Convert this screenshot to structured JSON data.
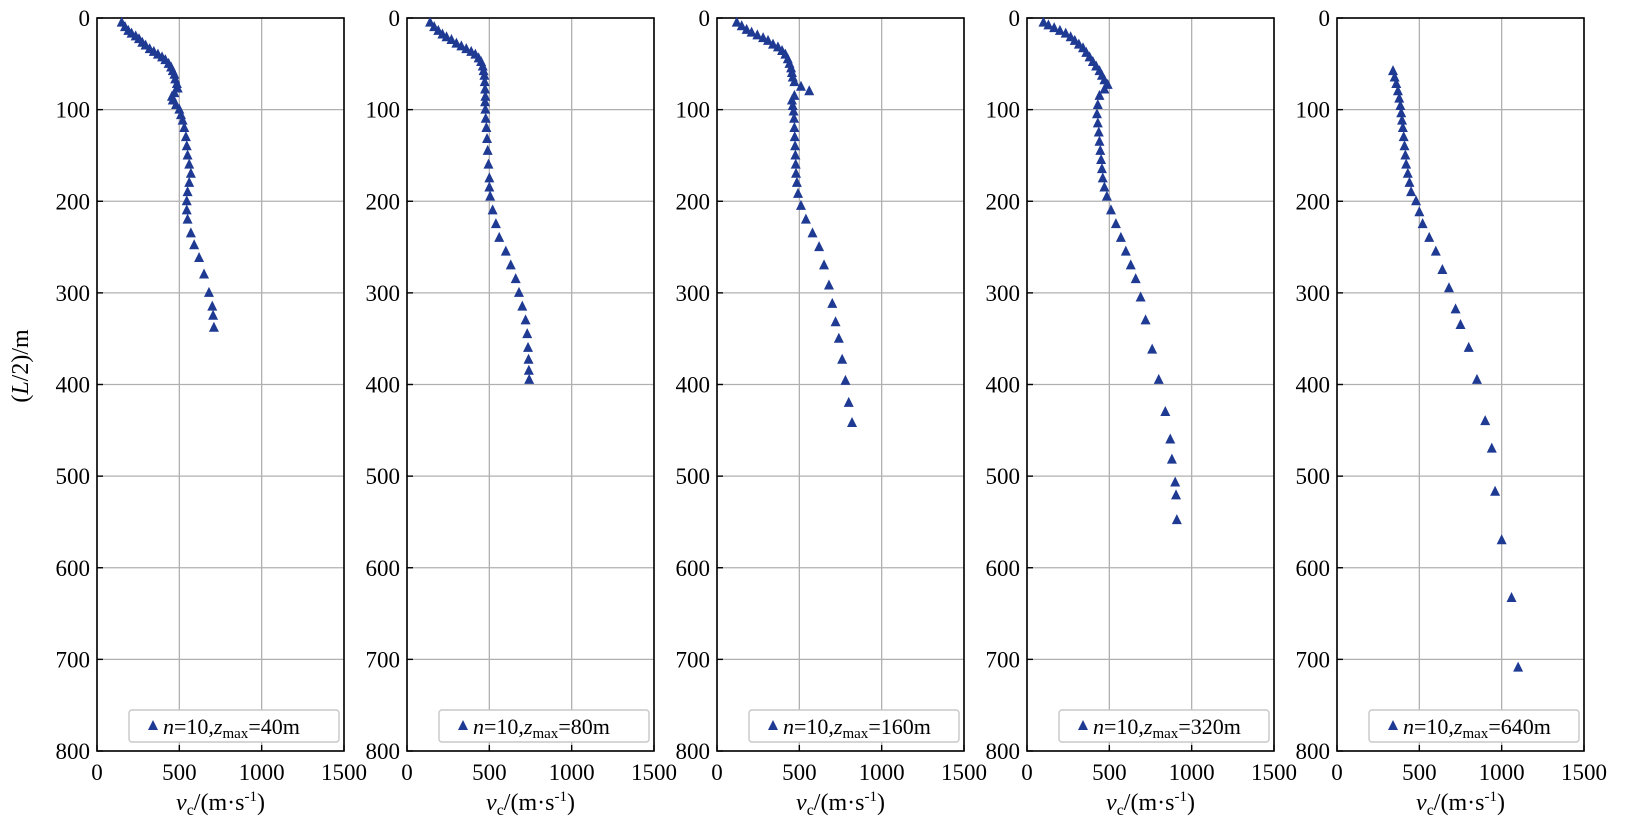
{
  "chart_data": [
    {
      "type": "scatter",
      "ylabel": "(L/2)/m",
      "xlabel": "vc/(m·s-1)",
      "xlim": [
        0,
        1500
      ],
      "ylim": [
        0,
        800
      ],
      "y_inverted": true,
      "grid": true,
      "legend_position": "bottom",
      "marker_color": "#1f3a93",
      "x_ticks": [
        "0",
        "500",
        "1000",
        "1500"
      ],
      "y_ticks": [
        "0",
        "100",
        "200",
        "300",
        "400",
        "500",
        "600",
        "700",
        "800"
      ],
      "series": [
        {
          "name": "n=10,zmax=40m",
          "legend": {
            "n_value": "=10,",
            "z_value": "=40m"
          },
          "points": [
            [
              150,
              5
            ],
            [
              170,
              10
            ],
            [
              190,
              14
            ],
            [
              210,
              17
            ],
            [
              235,
              20
            ],
            [
              255,
              23
            ],
            [
              275,
              27
            ],
            [
              295,
              30
            ],
            [
              320,
              34
            ],
            [
              345,
              37
            ],
            [
              370,
              40
            ],
            [
              395,
              43
            ],
            [
              415,
              46
            ],
            [
              435,
              50
            ],
            [
              450,
              54
            ],
            [
              460,
              58
            ],
            [
              470,
              62
            ],
            [
              475,
              67
            ],
            [
              485,
              72
            ],
            [
              490,
              77
            ],
            [
              470,
              82
            ],
            [
              455,
              86
            ],
            [
              460,
              90
            ],
            [
              480,
              95
            ],
            [
              500,
              100
            ],
            [
              510,
              106
            ],
            [
              520,
              112
            ],
            [
              530,
              120
            ],
            [
              540,
              130
            ],
            [
              545,
              140
            ],
            [
              550,
              150
            ],
            [
              560,
              160
            ],
            [
              570,
              170
            ],
            [
              560,
              180
            ],
            [
              550,
              190
            ],
            [
              545,
              200
            ],
            [
              545,
              210
            ],
            [
              550,
              220
            ],
            [
              570,
              235
            ],
            [
              590,
              248
            ],
            [
              620,
              262
            ],
            [
              650,
              280
            ],
            [
              680,
              300
            ],
            [
              700,
              315
            ],
            [
              705,
              325
            ],
            [
              710,
              338
            ]
          ]
        },
        {
          "name": "n=10,zmax=80m",
          "legend": {
            "n_value": "=10,",
            "z_value": "=80m"
          },
          "points": [
            [
              140,
              5
            ],
            [
              165,
              10
            ],
            [
              190,
              14
            ],
            [
              215,
              18
            ],
            [
              240,
              21
            ],
            [
              270,
              24
            ],
            [
              300,
              28
            ],
            [
              330,
              31
            ],
            [
              360,
              34
            ],
            [
              390,
              37
            ],
            [
              415,
              40
            ],
            [
              435,
              44
            ],
            [
              450,
              48
            ],
            [
              460,
              53
            ],
            [
              465,
              58
            ],
            [
              470,
              63
            ],
            [
              472,
              70
            ],
            [
              474,
              78
            ],
            [
              476,
              86
            ],
            [
              474,
              92
            ],
            [
              476,
              100
            ],
            [
              478,
              110
            ],
            [
              482,
              120
            ],
            [
              486,
              132
            ],
            [
              490,
              145
            ],
            [
              495,
              160
            ],
            [
              500,
              175
            ],
            [
              500,
              185
            ],
            [
              505,
              195
            ],
            [
              520,
              210
            ],
            [
              540,
              225
            ],
            [
              560,
              240
            ],
            [
              600,
              255
            ],
            [
              630,
              270
            ],
            [
              660,
              285
            ],
            [
              680,
              300
            ],
            [
              700,
              315
            ],
            [
              720,
              330
            ],
            [
              730,
              345
            ],
            [
              735,
              360
            ],
            [
              738,
              373
            ],
            [
              740,
              385
            ],
            [
              742,
              395
            ]
          ]
        },
        {
          "name": "n=10,zmax=160m",
          "legend": {
            "n_value": "=10,",
            "z_value": "=160m"
          },
          "points": [
            [
              120,
              5
            ],
            [
              150,
              9
            ],
            [
              180,
              13
            ],
            [
              210,
              16
            ],
            [
              245,
              19
            ],
            [
              280,
              22
            ],
            [
              310,
              25
            ],
            [
              340,
              29
            ],
            [
              370,
              32
            ],
            [
              395,
              36
            ],
            [
              415,
              40
            ],
            [
              430,
              45
            ],
            [
              440,
              50
            ],
            [
              450,
              55
            ],
            [
              455,
              60
            ],
            [
              460,
              65
            ],
            [
              470,
              70
            ],
            [
              510,
              75
            ],
            [
              560,
              80
            ],
            [
              470,
              85
            ],
            [
              455,
              90
            ],
            [
              460,
              96
            ],
            [
              465,
              102
            ],
            [
              468,
              110
            ],
            [
              470,
              120
            ],
            [
              472,
              130
            ],
            [
              474,
              140
            ],
            [
              476,
              150
            ],
            [
              478,
              160
            ],
            [
              480,
              170
            ],
            [
              485,
              180
            ],
            [
              492,
              192
            ],
            [
              510,
              205
            ],
            [
              540,
              220
            ],
            [
              580,
              235
            ],
            [
              620,
              250
            ],
            [
              650,
              270
            ],
            [
              680,
              292
            ],
            [
              700,
              312
            ],
            [
              720,
              332
            ],
            [
              740,
              350
            ],
            [
              760,
              373
            ],
            [
              780,
              396
            ],
            [
              800,
              420
            ],
            [
              820,
              442
            ]
          ]
        },
        {
          "name": "n=10,zmax=320m",
          "legend": {
            "n_value": "=10,",
            "z_value": "=320m"
          },
          "points": [
            [
              100,
              5
            ],
            [
              130,
              8
            ],
            [
              165,
              11
            ],
            [
              200,
              14
            ],
            [
              235,
              17
            ],
            [
              265,
              21
            ],
            [
              290,
              25
            ],
            [
              315,
              29
            ],
            [
              340,
              33
            ],
            [
              360,
              38
            ],
            [
              380,
              43
            ],
            [
              400,
              48
            ],
            [
              420,
              53
            ],
            [
              440,
              58
            ],
            [
              455,
              63
            ],
            [
              470,
              68
            ],
            [
              490,
              73
            ],
            [
              470,
              78
            ],
            [
              440,
              85
            ],
            [
              430,
              95
            ],
            [
              425,
              105
            ],
            [
              430,
              115
            ],
            [
              436,
              125
            ],
            [
              440,
              135
            ],
            [
              445,
              145
            ],
            [
              450,
              155
            ],
            [
              455,
              165
            ],
            [
              460,
              175
            ],
            [
              470,
              185
            ],
            [
              485,
              195
            ],
            [
              510,
              210
            ],
            [
              540,
              225
            ],
            [
              570,
              240
            ],
            [
              600,
              255
            ],
            [
              630,
              270
            ],
            [
              660,
              285
            ],
            [
              690,
              305
            ],
            [
              720,
              330
            ],
            [
              760,
              362
            ],
            [
              800,
              395
            ],
            [
              840,
              430
            ],
            [
              870,
              460
            ],
            [
              880,
              482
            ],
            [
              900,
              507
            ],
            [
              905,
              521
            ],
            [
              910,
              548
            ]
          ]
        },
        {
          "name": "n=10,zmax=640m",
          "legend": {
            "n_value": "=10,",
            "z_value": "=640m"
          },
          "points": [
            [
              340,
              58
            ],
            [
              350,
              65
            ],
            [
              360,
              72
            ],
            [
              370,
              80
            ],
            [
              378,
              88
            ],
            [
              385,
              96
            ],
            [
              390,
              104
            ],
            [
              395,
              112
            ],
            [
              400,
              120
            ],
            [
              405,
              130
            ],
            [
              410,
              140
            ],
            [
              415,
              150
            ],
            [
              420,
              160
            ],
            [
              430,
              170
            ],
            [
              440,
              180
            ],
            [
              450,
              190
            ],
            [
              480,
              200
            ],
            [
              500,
              212
            ],
            [
              520,
              225
            ],
            [
              560,
              240
            ],
            [
              600,
              255
            ],
            [
              640,
              275
            ],
            [
              680,
              295
            ],
            [
              720,
              318
            ],
            [
              750,
              335
            ],
            [
              800,
              360
            ],
            [
              850,
              395
            ],
            [
              900,
              440
            ],
            [
              940,
              470
            ],
            [
              960,
              517
            ],
            [
              1000,
              570
            ],
            [
              1060,
              633
            ],
            [
              1100,
              709
            ]
          ]
        }
      ]
    }
  ]
}
